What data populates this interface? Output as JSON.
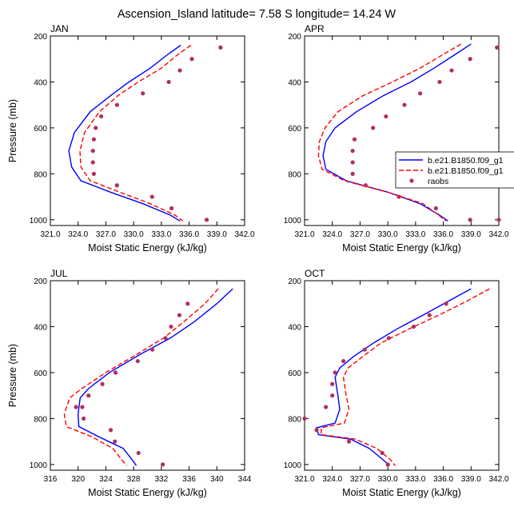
{
  "figure_title": "Ascension_Island  latitude= 7.58 S longitude= 14.24 W",
  "colors": {
    "model1": "#0000ff",
    "model2": "#ff0000",
    "raobs": "#b03060",
    "axis": "#000000"
  },
  "legend": {
    "entries": [
      "b.e21.B1850.f09_g1",
      "b.e21.B1850.f09_g1",
      "raobs"
    ]
  },
  "chart_data": [
    {
      "type": "line",
      "title": "JAN",
      "xlabel": "Moist Static Energy (kJ/kg)",
      "ylabel": "Pressure (mb)",
      "xlim": [
        321.0,
        342.0
      ],
      "ylim": [
        200,
        1025
      ],
      "xticks": [
        321.0,
        324.0,
        327.0,
        330.0,
        333.0,
        336.0,
        339.0,
        342.0
      ],
      "xtick_labels": [
        "321.0",
        "324.0",
        "327.0",
        "330.0",
        "333.0",
        "336.0",
        "339.0",
        "342.0"
      ],
      "yticks": [
        200,
        400,
        600,
        800,
        1000
      ],
      "ytick_labels": [
        "200",
        "400",
        "600",
        "800",
        "1000"
      ],
      "series": [
        {
          "name": "b.e21.B1850.f09_g1",
          "style": "solid",
          "x": [
            335.1,
            333.7,
            331.8,
            329.5,
            327.5,
            325.3,
            323.6,
            323.0,
            323.3,
            324.3,
            327.5,
            331.0,
            334.0,
            335.0
          ],
          "y": [
            240,
            280,
            340,
            400,
            460,
            530,
            620,
            700,
            770,
            830,
            880,
            930,
            980,
            1005
          ]
        },
        {
          "name": "b.e21.B1850.f09_g1",
          "style": "dash",
          "x": [
            336.2,
            334.8,
            333.0,
            330.5,
            328.3,
            326.3,
            324.7,
            324.2,
            324.3,
            325.3,
            328.5,
            331.8,
            334.5,
            335.3
          ],
          "y": [
            240,
            280,
            340,
            400,
            460,
            530,
            620,
            700,
            770,
            830,
            880,
            930,
            980,
            1005
          ]
        },
        {
          "name": "raobs",
          "style": "points",
          "x": [
            339.4,
            336.3,
            335.0,
            333.8,
            331.0,
            328.2,
            326.5,
            325.9,
            325.7,
            325.6,
            325.6,
            325.7,
            328.2,
            332.0,
            334.1,
            337.9
          ],
          "y": [
            250,
            300,
            350,
            400,
            450,
            500,
            550,
            600,
            650,
            700,
            750,
            800,
            850,
            900,
            950,
            1000
          ]
        }
      ]
    },
    {
      "type": "line",
      "title": "APR",
      "xlabel": "Moist Static Energy (kJ/kg)",
      "ylabel": "",
      "xlim": [
        321.0,
        342.0
      ],
      "ylim": [
        200,
        1025
      ],
      "xticks": [
        321.0,
        324.0,
        327.0,
        330.0,
        333.0,
        336.0,
        339.0,
        342.0
      ],
      "xtick_labels": [
        "321.0",
        "324.0",
        "327.0",
        "330.0",
        "333.0",
        "336.0",
        "339.0",
        "342.0"
      ],
      "yticks": [
        200,
        400,
        600,
        800,
        1000
      ],
      "ytick_labels": [
        "200",
        "400",
        "600",
        "800",
        "1000"
      ],
      "series": [
        {
          "name": "b.e21.B1850.f09_g1",
          "style": "solid",
          "x": [
            339.0,
            337.3,
            335.0,
            332.5,
            329.5,
            326.6,
            324.3,
            323.3,
            323.0,
            323.3,
            325.5,
            330.0,
            333.5,
            335.6,
            336.5
          ],
          "y": [
            235,
            280,
            340,
            400,
            460,
            530,
            600,
            660,
            720,
            780,
            830,
            880,
            930,
            980,
            1005
          ]
        },
        {
          "name": "b.e21.B1850.f09_g1",
          "style": "dash",
          "x": [
            337.9,
            336.0,
            333.5,
            330.5,
            327.3,
            324.6,
            323.2,
            322.6,
            322.5,
            322.9,
            325.3,
            330.0,
            333.8,
            335.5,
            336.3
          ],
          "y": [
            235,
            280,
            340,
            400,
            460,
            530,
            600,
            660,
            720,
            780,
            830,
            880,
            930,
            980,
            1005
          ]
        },
        {
          "name": "raobs",
          "style": "points",
          "x": [
            341.8,
            338.9,
            336.9,
            335.6,
            333.5,
            331.8,
            329.8,
            328.4,
            326.4,
            326.2,
            326.2,
            326.2,
            327.6,
            331.2,
            335.2,
            338.9,
            342.0
          ],
          "y": [
            250,
            300,
            350,
            400,
            450,
            500,
            550,
            600,
            650,
            700,
            750,
            800,
            850,
            900,
            950,
            1000,
            1000
          ]
        }
      ]
    },
    {
      "type": "line",
      "title": "JUL",
      "xlabel": "Moist Static Energy (kJ/kg)",
      "ylabel": "Pressure (mb)",
      "xlim": [
        316,
        344
      ],
      "ylim": [
        200,
        1025
      ],
      "xticks": [
        316,
        320,
        324,
        328,
        332,
        336,
        340,
        344
      ],
      "xtick_labels": [
        "316",
        "320",
        "324",
        "328",
        "332",
        "336",
        "340",
        "344"
      ],
      "yticks": [
        200,
        400,
        600,
        800,
        1000
      ],
      "ytick_labels": [
        "200",
        "400",
        "600",
        "800",
        "1000"
      ],
      "series": [
        {
          "name": "b.e21.B1850.f09_g1",
          "style": "solid",
          "x": [
            342.3,
            340.0,
            336.7,
            333.3,
            329.0,
            324.5,
            321.5,
            320.3,
            320.0,
            320.1,
            323.0,
            326.5,
            327.8,
            328.4
          ],
          "y": [
            235,
            300,
            380,
            450,
            520,
            600,
            670,
            710,
            780,
            835,
            880,
            930,
            980,
            1005
          ]
        },
        {
          "name": "b.e21.B1850.f09_g1",
          "style": "dash",
          "x": [
            340.2,
            338.3,
            335.2,
            332.3,
            328.5,
            324.0,
            320.5,
            318.8,
            318.0,
            318.3,
            322.0,
            325.0,
            326.3,
            327.0
          ],
          "y": [
            235,
            300,
            380,
            450,
            520,
            600,
            670,
            710,
            780,
            835,
            880,
            930,
            980,
            1005
          ]
        },
        {
          "name": "raobs",
          "style": "points",
          "x": [
            335.8,
            334.6,
            333.4,
            332.6,
            330.7,
            328.6,
            325.4,
            323.5,
            321.5,
            320.6,
            319.7,
            320.8,
            324.7,
            325.3,
            328.7,
            332.2
          ],
          "y": [
            300,
            350,
            400,
            450,
            500,
            550,
            600,
            650,
            700,
            750,
            750,
            800,
            850,
            900,
            950,
            1000
          ]
        }
      ]
    },
    {
      "type": "line",
      "title": "OCT",
      "xlabel": "Moist Static Energy (kJ/kg)",
      "ylabel": "",
      "xlim": [
        321.0,
        342.0
      ],
      "ylim": [
        200,
        1025
      ],
      "xticks": [
        321.0,
        324.0,
        327.0,
        330.0,
        333.0,
        336.0,
        339.0,
        342.0
      ],
      "xtick_labels": [
        "321.0",
        "324.0",
        "327.0",
        "330.0",
        "333.0",
        "336.0",
        "339.0",
        "342.0"
      ],
      "yticks": [
        200,
        400,
        600,
        800,
        1000
      ],
      "ytick_labels": [
        "200",
        "400",
        "600",
        "800",
        "1000"
      ],
      "series": [
        {
          "name": "b.e21.B1850.f09_g1",
          "style": "solid",
          "x": [
            339.0,
            336.5,
            333.8,
            331.0,
            328.5,
            326.3,
            324.8,
            324.3,
            324.6,
            324.8,
            324.3,
            322.3,
            322.5,
            326.0,
            328.0,
            329.5,
            330.2
          ],
          "y": [
            235,
            290,
            350,
            410,
            470,
            530,
            580,
            620,
            700,
            760,
            820,
            840,
            870,
            890,
            930,
            980,
            1005
          ]
        },
        {
          "name": "b.e21.B1850.f09_g1",
          "style": "dash",
          "x": [
            341.0,
            338.5,
            335.5,
            332.3,
            329.3,
            327.3,
            325.7,
            325.2,
            325.5,
            325.8,
            325.3,
            322.8,
            322.8,
            326.5,
            328.8,
            330.3,
            330.8
          ],
          "y": [
            235,
            290,
            350,
            410,
            470,
            530,
            580,
            620,
            700,
            760,
            820,
            840,
            870,
            890,
            930,
            980,
            1005
          ]
        },
        {
          "name": "raobs",
          "style": "points",
          "x": [
            336.3,
            334.5,
            332.8,
            330.1,
            327.5,
            325.2,
            324.3,
            324.0,
            324.0,
            323.3,
            321.0,
            322.3,
            325.8,
            329.4,
            330.0
          ],
          "y": [
            300,
            350,
            400,
            450,
            500,
            550,
            600,
            650,
            700,
            750,
            800,
            850,
            900,
            950,
            1000
          ]
        }
      ]
    }
  ]
}
